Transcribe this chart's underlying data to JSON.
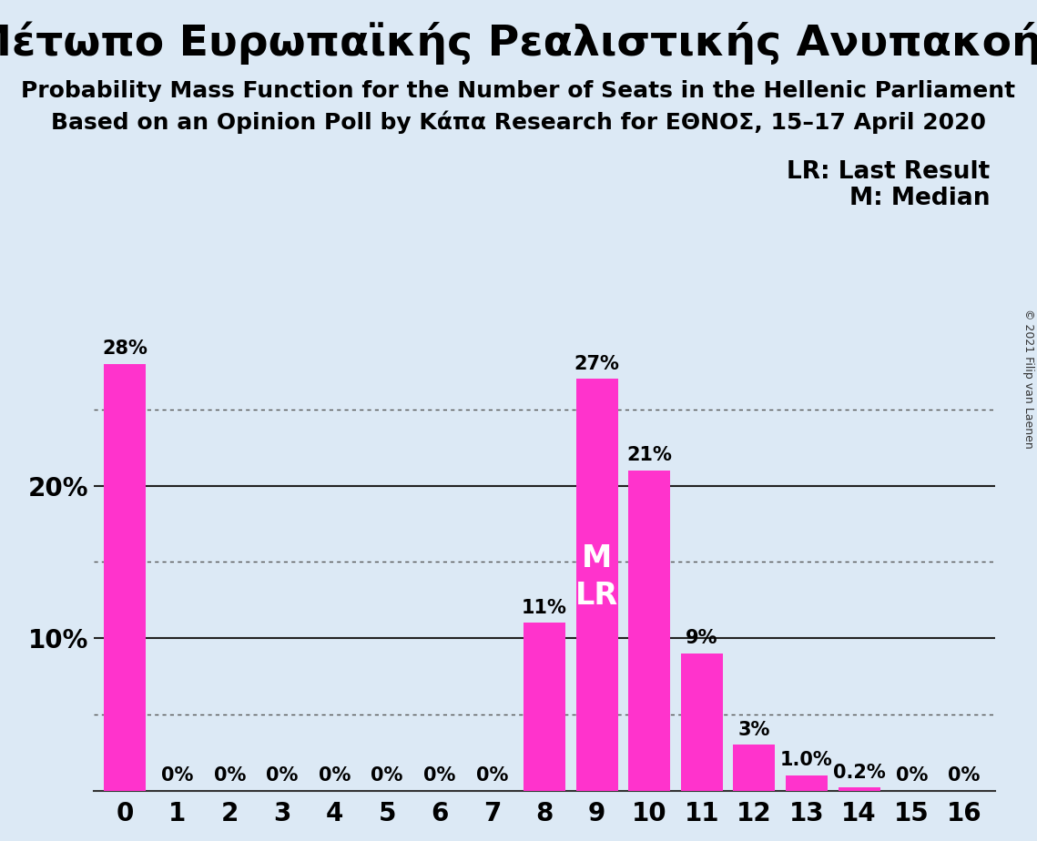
{
  "title_greek": "Μέτωπο Ευρωπαϊκής Ρεαλιστικής Ανυπακοής",
  "subtitle1": "Probability Mass Function for the Number of Seats in the Hellenic Parliament",
  "subtitle2": "Based on an Opinion Poll by Κάπα Research for ΕΘΝΟΣ, 15–17 April 2020",
  "copyright": "© 2021 Filip van Laenen",
  "categories": [
    0,
    1,
    2,
    3,
    4,
    5,
    6,
    7,
    8,
    9,
    10,
    11,
    12,
    13,
    14,
    15,
    16
  ],
  "values": [
    28,
    0,
    0,
    0,
    0,
    0,
    0,
    0,
    11,
    27,
    21,
    9,
    3,
    1.0,
    0.2,
    0,
    0
  ],
  "labels": [
    "28%",
    "0%",
    "0%",
    "0%",
    "0%",
    "0%",
    "0%",
    "0%",
    "11%",
    "27%",
    "21%",
    "9%",
    "3%",
    "1.0%",
    "0.2%",
    "0%",
    "0%"
  ],
  "bar_color": "#FF33CC",
  "background_color": "#DCE9F5",
  "text_color": "#000000",
  "white_text_color": "#FFFFFF",
  "median_seat": 9,
  "legend_lr": "LR: Last Result",
  "legend_m": "M: Median",
  "ytick_positions": [
    10,
    20
  ],
  "ytick_labels": [
    "10%",
    "20%"
  ],
  "dotted_lines": [
    5,
    15,
    25
  ],
  "solid_lines": [
    10,
    20
  ],
  "ylim": [
    0,
    32
  ],
  "title_fontsize": 34,
  "subtitle_fontsize": 18,
  "bar_label_fontsize": 15,
  "axis_tick_fontsize": 20,
  "legend_fontsize": 19,
  "ml_label_fontsize": 24
}
